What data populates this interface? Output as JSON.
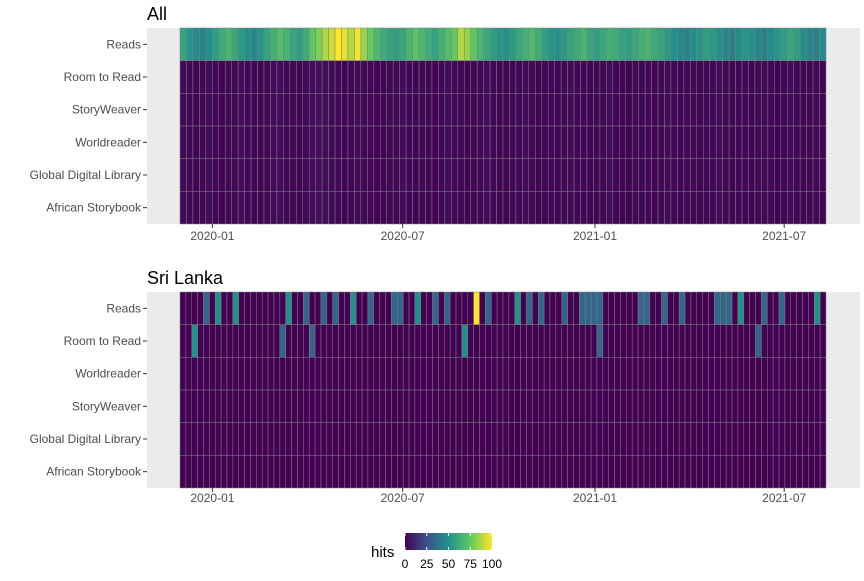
{
  "chart_data": [
    {
      "type": "heatmap",
      "title": "All",
      "xlabel": "",
      "ylabel": "",
      "x_start": "2019-12-01",
      "x_end": "2021-08-10",
      "x_ticks": [
        "2020-01",
        "2020-07",
        "2021-01",
        "2021-07"
      ],
      "rows": [
        "Reads",
        "Room to Read",
        "StoryWeaver",
        "Worldreader",
        "Global Digital Library",
        "African Storybook"
      ],
      "reads_values": [
        58,
        52,
        48,
        44,
        50,
        56,
        62,
        66,
        60,
        54,
        50,
        46,
        52,
        58,
        64,
        70,
        66,
        60,
        56,
        62,
        74,
        80,
        88,
        92,
        100,
        96,
        88,
        98,
        84,
        76,
        68,
        62,
        58,
        56,
        60,
        66,
        72,
        68,
        62,
        58,
        64,
        70,
        76,
        88,
        84,
        74,
        66,
        60,
        56,
        52,
        50,
        54,
        60,
        64,
        68,
        62,
        56,
        52,
        50,
        54,
        58,
        62,
        66,
        60,
        56,
        60,
        64,
        62,
        58,
        56,
        60,
        64,
        66,
        62,
        58,
        54,
        50,
        46,
        44,
        48,
        52,
        56,
        54,
        50,
        46,
        44,
        48,
        52,
        50,
        46,
        44,
        48,
        52,
        56,
        60,
        56,
        50,
        46,
        44,
        48
      ],
      "other_values": [
        2,
        2,
        1,
        2,
        3,
        2,
        1,
        2,
        2,
        3,
        2,
        1,
        1,
        2,
        3,
        3,
        2,
        2,
        1,
        2,
        3,
        4,
        3,
        2,
        2,
        1,
        2,
        3,
        2,
        2,
        1,
        1,
        2,
        2,
        3,
        2,
        1,
        2,
        2,
        1,
        2,
        3,
        2,
        2,
        1,
        2,
        2,
        3,
        2,
        1,
        1,
        2,
        2,
        3,
        2,
        1,
        2,
        2,
        1,
        2,
        3,
        2,
        2,
        1,
        2,
        2,
        3,
        2,
        1,
        1,
        2,
        2,
        2,
        1,
        2,
        3,
        2,
        1,
        2,
        2,
        1,
        2,
        2,
        3,
        2,
        1,
        2,
        2,
        1,
        2,
        2,
        2,
        1,
        2,
        3,
        2,
        1,
        2,
        2,
        1
      ]
    },
    {
      "type": "heatmap",
      "title": "Sri Lanka",
      "xlabel": "",
      "ylabel": "",
      "x_start": "2019-12-01",
      "x_end": "2021-08-10",
      "x_ticks": [
        "2020-01",
        "2020-07",
        "2021-01",
        "2021-07"
      ],
      "rows": [
        "Reads",
        "Room to Read",
        "Worldreader",
        "StoryWeaver",
        "Global Digital Library",
        "African Storybook"
      ],
      "reads_values": [
        0,
        0,
        0,
        0,
        33,
        0,
        50,
        0,
        0,
        50,
        0,
        0,
        0,
        0,
        0,
        0,
        0,
        0,
        50,
        0,
        0,
        33,
        0,
        0,
        33,
        0,
        33,
        0,
        0,
        50,
        0,
        0,
        33,
        0,
        0,
        0,
        33,
        33,
        0,
        0,
        50,
        0,
        0,
        33,
        0,
        33,
        0,
        0,
        0,
        0,
        100,
        0,
        33,
        0,
        0,
        0,
        0,
        50,
        0,
        33,
        0,
        33,
        0,
        0,
        0,
        33,
        0,
        0,
        33,
        33,
        33,
        33,
        0,
        0,
        0,
        0,
        0,
        0,
        33,
        33,
        0,
        0,
        33,
        0,
        0,
        33,
        0,
        0,
        0,
        0,
        0,
        33,
        33,
        33,
        0,
        50,
        0,
        0,
        0,
        33,
        0,
        0,
        33,
        0,
        0,
        0,
        0,
        0,
        50,
        0
      ],
      "room_to_read_values": [
        0,
        0,
        50,
        0,
        0,
        0,
        0,
        0,
        0,
        0,
        0,
        0,
        0,
        0,
        0,
        0,
        0,
        33,
        0,
        0,
        0,
        0,
        33,
        0,
        0,
        0,
        0,
        0,
        0,
        0,
        0,
        0,
        0,
        0,
        0,
        0,
        0,
        0,
        0,
        0,
        0,
        0,
        0,
        0,
        0,
        0,
        0,
        0,
        50,
        0,
        0,
        0,
        0,
        0,
        0,
        0,
        0,
        0,
        0,
        0,
        0,
        0,
        0,
        0,
        0,
        0,
        0,
        0,
        0,
        0,
        0,
        33,
        0,
        0,
        0,
        0,
        0,
        0,
        0,
        0,
        0,
        0,
        0,
        0,
        0,
        0,
        0,
        0,
        0,
        0,
        0,
        0,
        0,
        0,
        0,
        0,
        0,
        0,
        33,
        0,
        0,
        0,
        0,
        0,
        0,
        0,
        0,
        0,
        0,
        0
      ]
    }
  ],
  "legend": {
    "title": "hits",
    "ticks": [
      "0",
      "25",
      "50",
      "75",
      "100"
    ],
    "limits": [
      0,
      100
    ],
    "colors": [
      "#440154",
      "#3b528b",
      "#21918c",
      "#5ec962",
      "#fde725"
    ]
  },
  "colors": {
    "panel_bg": "#ebebeb",
    "cell_border": "#7f7f7f"
  }
}
